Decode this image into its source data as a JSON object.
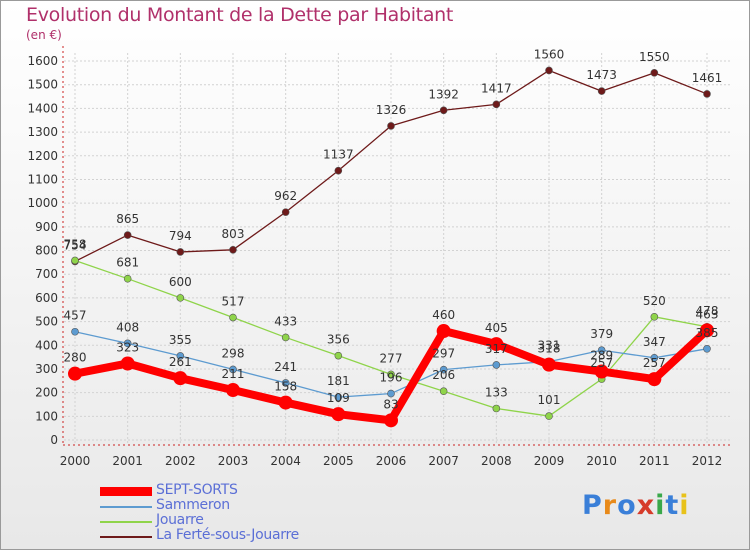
{
  "title": "Evolution du Montant de la Dette par Habitant",
  "subtitle": "(en €)",
  "logo": "Proxiti",
  "chart_data": {
    "type": "line",
    "x": [
      "2000",
      "2001",
      "2002",
      "2003",
      "2004",
      "2005",
      "2006",
      "2007",
      "2008",
      "2009",
      "2010",
      "2011",
      "2012"
    ],
    "ylim": [
      0,
      1600
    ],
    "yticks": [
      0,
      100,
      200,
      300,
      400,
      500,
      600,
      700,
      800,
      900,
      1000,
      1100,
      1200,
      1300,
      1400,
      1500,
      1600
    ],
    "grid": true,
    "legend": "bottom-left",
    "series": [
      {
        "name": "SEPT-SORTS",
        "color": "#ff0000",
        "values": [
          280,
          323,
          261,
          211,
          158,
          109,
          83,
          460,
          405,
          318,
          289,
          257,
          463
        ]
      },
      {
        "name": "Sammeron",
        "color": "#5d9bd0",
        "values": [
          457,
          408,
          355,
          298,
          241,
          181,
          196,
          297,
          317,
          331,
          379,
          347,
          385
        ]
      },
      {
        "name": "Jouarre",
        "color": "#8fd44a",
        "values": [
          758,
          681,
          600,
          517,
          433,
          356,
          277,
          206,
          133,
          101,
          257,
          520,
          478
        ]
      },
      {
        "name": "La Ferté-sous-Jouarre",
        "color": "#6e1a1a",
        "values": [
          754,
          865,
          794,
          803,
          962,
          1137,
          1326,
          1392,
          1417,
          1560,
          1473,
          1550,
          1461
        ]
      }
    ]
  }
}
